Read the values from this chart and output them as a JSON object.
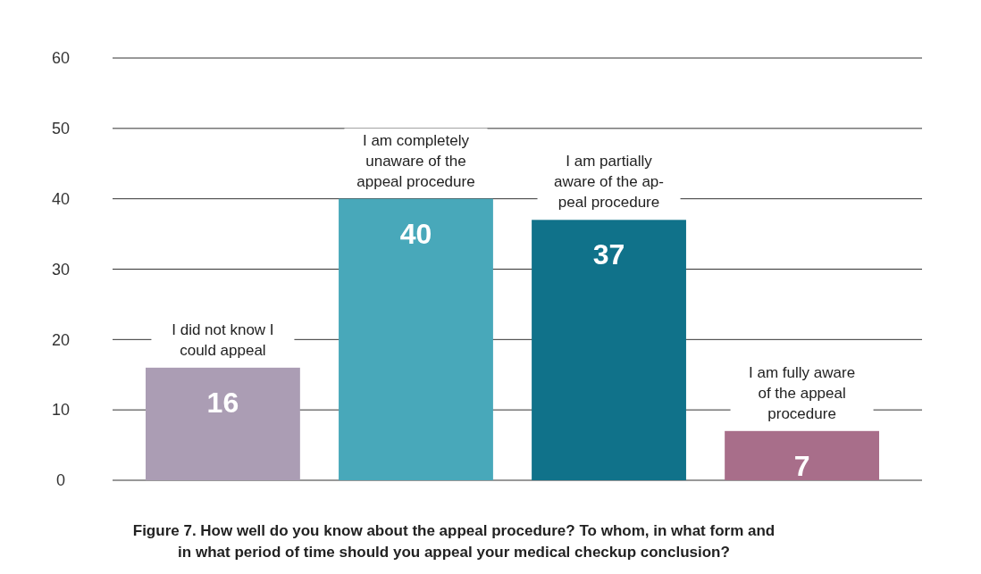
{
  "chart_data": {
    "type": "bar",
    "title": "Figure 7. How well do you know about the appeal procedure? To whom, in what form and\nin what period of time should you appeal your medical checkup conclusion?",
    "categories": [
      "I did not know I\ncould appeal",
      "I am completely\nunaware of the\nappeal procedure",
      "I am partially\naware of the ap-\npeal procedure",
      "I am fully aware\nof the appeal\nprocedure"
    ],
    "values": [
      16,
      40,
      37,
      7
    ],
    "colors": [
      "#ab9db4",
      "#48a8ba",
      "#10728a",
      "#a86e8a"
    ],
    "ylim": [
      0,
      60
    ],
    "yticks": [
      0,
      10,
      20,
      30,
      40,
      50,
      60
    ],
    "grid": "y",
    "data_labels": true
  }
}
